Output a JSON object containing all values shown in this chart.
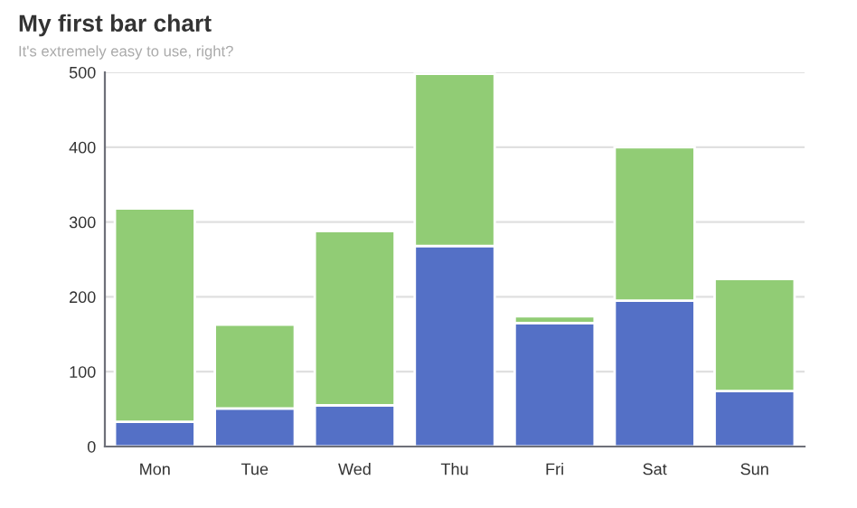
{
  "chart_data": {
    "type": "bar",
    "title": "My first bar chart",
    "subtitle": "It's extremely easy to use, right?",
    "categories": [
      "Mon",
      "Tue",
      "Wed",
      "Thu",
      "Fri",
      "Sat",
      "Sun"
    ],
    "stacked": true,
    "series": [
      {
        "color": "#5470c6",
        "values": [
          33,
          51,
          55,
          268,
          165,
          195,
          74
        ]
      },
      {
        "color": "#91cc75",
        "values": [
          285,
          112,
          233,
          230,
          9,
          205,
          150
        ]
      }
    ],
    "ylim": [
      0,
      500
    ],
    "yticks": [
      0,
      100,
      200,
      300,
      400,
      500
    ],
    "grid": "y"
  }
}
